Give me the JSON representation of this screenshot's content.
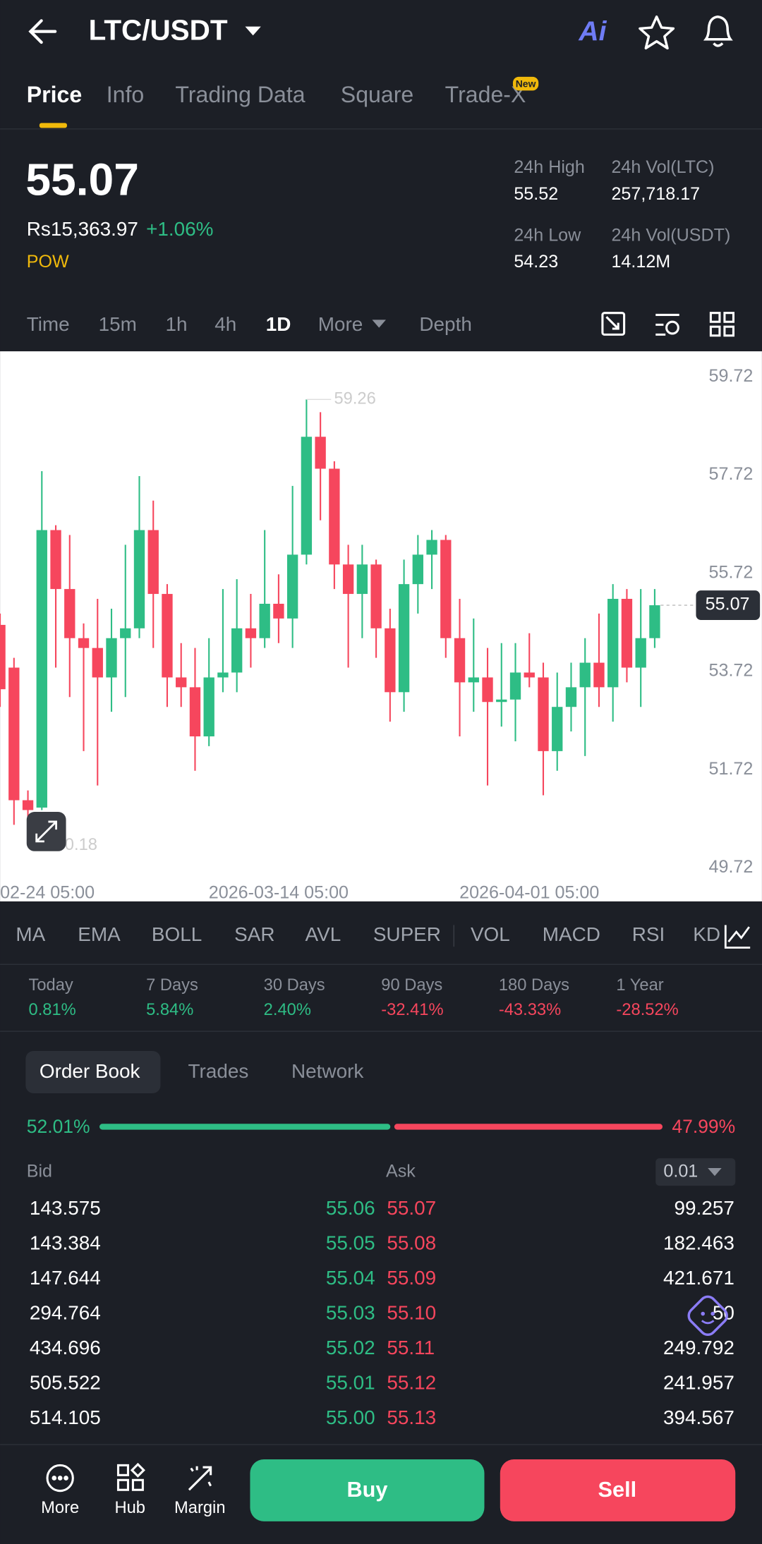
{
  "header": {
    "title": "LTC/USDT",
    "tabs": [
      "Price",
      "Info",
      "Trading Data",
      "Square",
      "Trade-X"
    ],
    "new_badge": "New"
  },
  "ticker": {
    "price": "55.07",
    "fiat": "Rs15,363.97",
    "change": "+1.06%",
    "tag": "POW",
    "stats": [
      {
        "label": "24h High",
        "value": "55.52"
      },
      {
        "label": "24h Vol(LTC)",
        "value": "257,718.17"
      },
      {
        "label": "24h Low",
        "value": "54.23"
      },
      {
        "label": "24h Vol(USDT)",
        "value": "14.12M"
      }
    ]
  },
  "intervals": [
    "Time",
    "15m",
    "1h",
    "4h",
    "1D",
    "More",
    "Depth"
  ],
  "chart_data": {
    "type": "candlestick",
    "up_color": "#2ebd85",
    "down_color": "#f6465d",
    "categories": [
      null,
      null,
      "02-24 05:00",
      null,
      null,
      null,
      null,
      null,
      null,
      null,
      null,
      null,
      null,
      null,
      null,
      null,
      null,
      null,
      null,
      null,
      "2026-03-14 05:00",
      null,
      null,
      null,
      null,
      null,
      null,
      null,
      null,
      null,
      null,
      null,
      null,
      null,
      null,
      null,
      null,
      null,
      "2026-04-01 05:00",
      null,
      null,
      null,
      null,
      null,
      null,
      null,
      null,
      null
    ],
    "open": [
      54.67,
      53.8,
      51.1,
      50.95,
      56.6,
      55.4,
      54.4,
      54.2,
      53.6,
      54.4,
      54.6,
      56.6,
      55.3,
      53.6,
      53.4,
      52.4,
      53.6,
      53.7,
      54.6,
      54.4,
      55.1,
      54.8,
      56.1,
      58.5,
      57.85,
      55.9,
      55.3,
      55.9,
      54.6,
      53.3,
      55.5,
      56.1,
      56.4,
      54.4,
      53.5,
      53.6,
      53.1,
      53.15,
      53.7,
      53.6,
      52.1,
      53.0,
      53.4,
      53.9,
      53.4,
      55.2,
      53.8,
      54.4
    ],
    "high": [
      54.9,
      54.0,
      51.3,
      57.8,
      56.7,
      56.5,
      54.7,
      55.2,
      55.0,
      56.3,
      57.7,
      57.2,
      55.5,
      54.3,
      54.2,
      54.4,
      55.4,
      55.6,
      55.3,
      56.6,
      55.7,
      57.5,
      59.26,
      59.0,
      58.0,
      56.3,
      56.3,
      56.0,
      55.0,
      56.0,
      56.5,
      56.6,
      56.5,
      55.2,
      54.8,
      54.2,
      54.3,
      54.3,
      54.5,
      53.9,
      53.7,
      53.9,
      54.4,
      54.9,
      55.5,
      55.4,
      55.4,
      55.4
    ],
    "low": [
      53.0,
      50.6,
      50.18,
      50.9,
      53.8,
      53.2,
      52.1,
      51.4,
      52.9,
      53.2,
      54.4,
      54.2,
      53.0,
      53.0,
      51.7,
      52.2,
      53.3,
      53.3,
      53.8,
      54.2,
      54.3,
      54.2,
      55.9,
      56.8,
      55.4,
      53.8,
      54.4,
      54.0,
      52.7,
      52.9,
      54.9,
      55.4,
      54.0,
      52.4,
      52.9,
      51.4,
      52.6,
      52.3,
      53.4,
      51.2,
      51.7,
      52.5,
      52.0,
      53.0,
      52.7,
      53.5,
      53.0,
      54.2
    ],
    "close": [
      53.36,
      51.1,
      50.9,
      56.6,
      55.4,
      54.4,
      54.2,
      53.6,
      54.4,
      54.6,
      56.6,
      55.3,
      53.6,
      53.4,
      52.4,
      53.6,
      53.7,
      54.6,
      54.4,
      55.1,
      54.8,
      56.1,
      58.5,
      57.85,
      55.9,
      55.3,
      55.9,
      54.6,
      53.3,
      55.5,
      56.1,
      56.4,
      54.4,
      53.5,
      53.6,
      53.1,
      53.15,
      53.7,
      53.6,
      52.1,
      53.0,
      53.4,
      53.9,
      53.4,
      55.2,
      53.8,
      54.4,
      55.07
    ],
    "ylim": [
      49.04,
      60.24
    ],
    "yticks": [
      49.72,
      51.72,
      53.72,
      55.72,
      57.72,
      59.72
    ],
    "grid": false,
    "high_label": 59.26,
    "low_label": 50.18,
    "last_price": 55.07
  },
  "indicators": [
    "MA",
    "EMA",
    "BOLL",
    "SAR",
    "AVL",
    "SUPER",
    "VOL",
    "MACD",
    "RSI",
    "KD"
  ],
  "performance": [
    {
      "label": "Today",
      "value": "0.81%"
    },
    {
      "label": "7 Days",
      "value": "5.84%"
    },
    {
      "label": "30 Days",
      "value": "2.40%"
    },
    {
      "label": "90 Days",
      "value": "-32.41%"
    },
    {
      "label": "180 Days",
      "value": "-43.33%"
    },
    {
      "label": "1 Year",
      "value": "-28.52%"
    }
  ],
  "order_book": {
    "tabs": [
      "Order Book",
      "Trades",
      "Network"
    ],
    "ratio": {
      "values": [
        52.01,
        47.99
      ],
      "value_labels": [
        "52.01%",
        "47.99%"
      ]
    },
    "bid_header": "Bid",
    "ask_header": "Ask",
    "precision": "0.01",
    "bids": [
      [
        "143.575",
        "55.06"
      ],
      [
        "143.384",
        "55.05"
      ],
      [
        "147.644",
        "55.04"
      ],
      [
        "294.764",
        "55.03"
      ],
      [
        "434.696",
        "55.02"
      ],
      [
        "505.522",
        "55.01"
      ],
      [
        "514.105",
        "55.00"
      ]
    ],
    "asks": [
      [
        "55.07",
        "99.257"
      ],
      [
        "55.08",
        "182.463"
      ],
      [
        "55.09",
        "421.671"
      ],
      [
        "55.10",
        "50"
      ],
      [
        "55.11",
        "249.792"
      ],
      [
        "55.12",
        "241.957"
      ],
      [
        "55.13",
        "394.567"
      ]
    ]
  },
  "bottom_bar": {
    "items": [
      "More",
      "Hub",
      "Margin"
    ],
    "buy": "Buy",
    "sell": "Sell"
  }
}
